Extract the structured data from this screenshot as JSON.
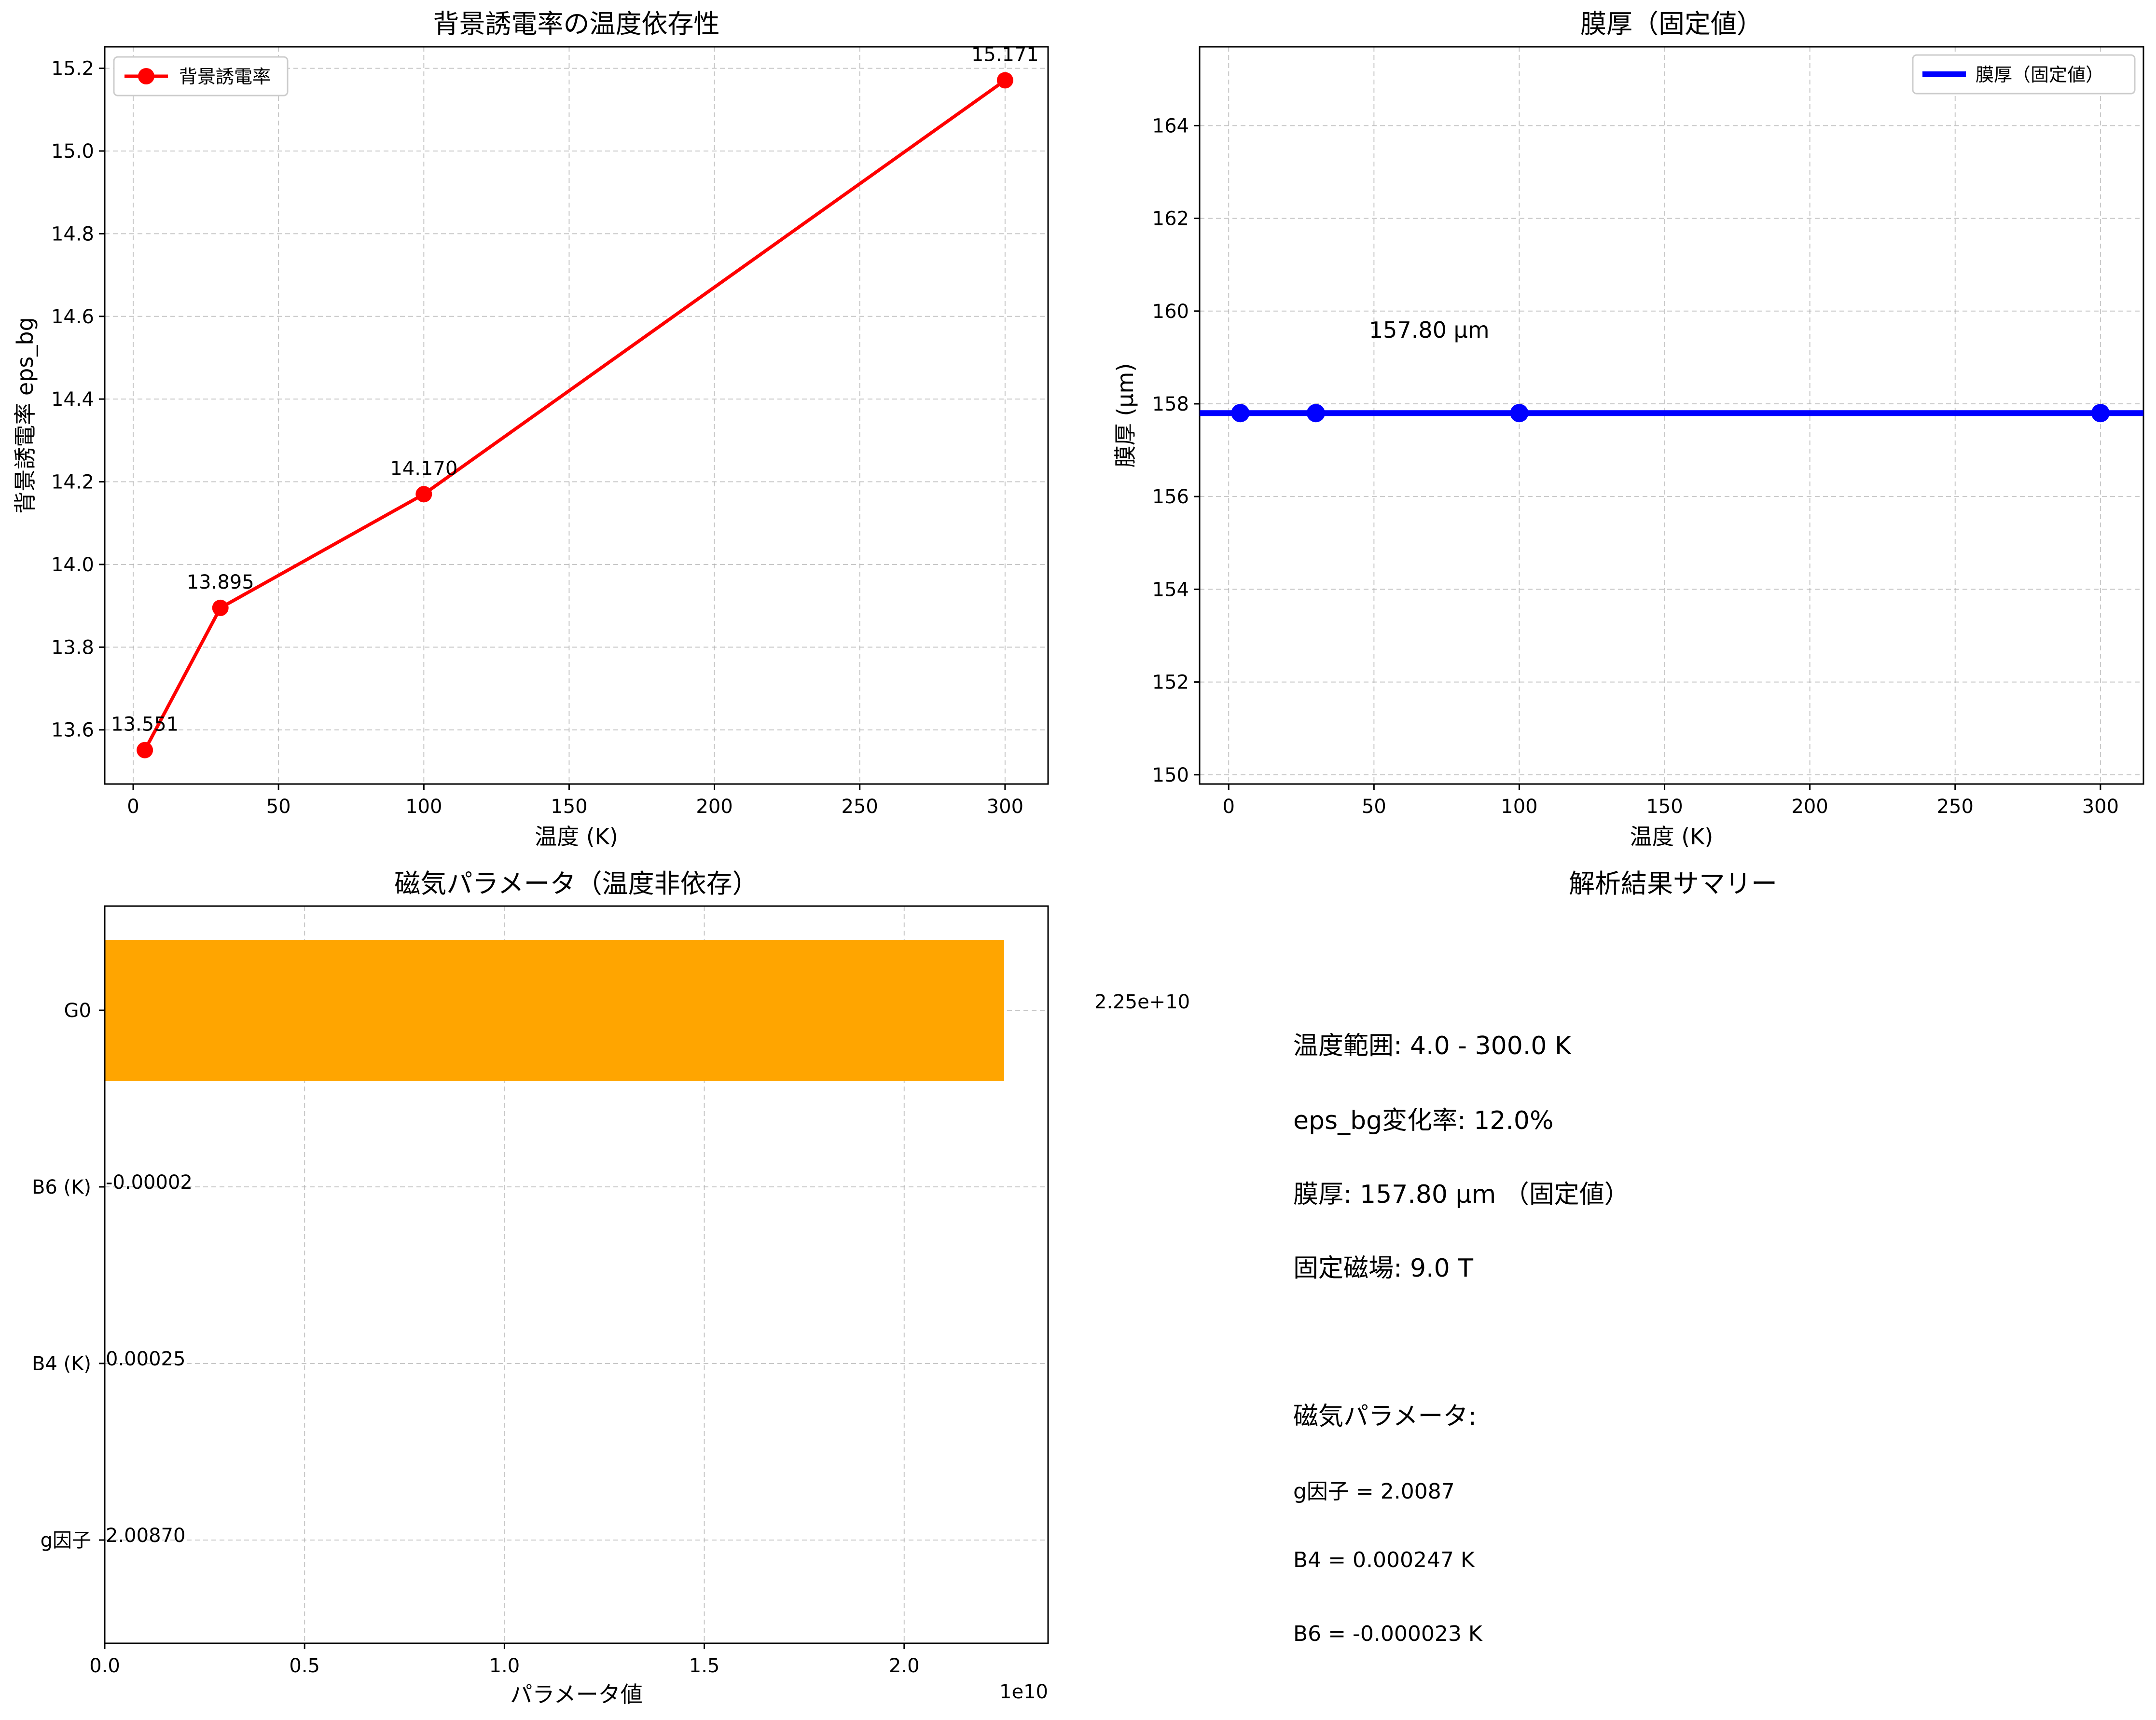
{
  "chart_data": [
    {
      "type": "line",
      "title": "背景誘電率の温度依存性",
      "xlabel": "温度 (K)",
      "ylabel": "背景誘電率 eps_bg",
      "xlim": [
        -9.8,
        314.8
      ],
      "ylim": [
        13.469,
        15.252
      ],
      "xticks": [
        0,
        50,
        100,
        150,
        200,
        250,
        300
      ],
      "yticks": [
        13.6,
        13.8,
        14.0,
        14.2,
        14.4,
        14.6,
        14.8,
        15.0,
        15.2
      ],
      "ytick_labels": [
        "13.6",
        "13.8",
        "14.0",
        "14.2",
        "14.4",
        "14.6",
        "14.8",
        "15.0",
        "15.2"
      ],
      "grid": true,
      "legend_position": "upper-left",
      "series": [
        {
          "name": "背景誘電率",
          "color": "#ff0000",
          "x": [
            4,
            30,
            100,
            300
          ],
          "y": [
            13.551,
            13.895,
            14.17,
            15.171
          ],
          "labels": [
            "13.551",
            "13.895",
            "14.170",
            "15.171"
          ]
        }
      ]
    },
    {
      "type": "line",
      "title": "膜厚（固定値）",
      "xlabel": "温度 (K)",
      "ylabel": "膜厚 (μm)",
      "xlim": [
        -10,
        314.8
      ],
      "ylim": [
        149.8,
        165.7
      ],
      "xticks": [
        0,
        50,
        100,
        150,
        200,
        250,
        300
      ],
      "yticks": [
        150,
        152,
        154,
        156,
        158,
        160,
        162,
        164
      ],
      "grid": true,
      "legend_position": "upper-right",
      "annotation": "157.80 μm",
      "hline": {
        "name": "膜厚（固定値）",
        "y": 157.8,
        "color": "#0000ff"
      },
      "series": [
        {
          "color": "#0000ff",
          "x": [
            4,
            30,
            100,
            300
          ],
          "y": [
            157.8,
            157.8,
            157.8,
            157.8
          ]
        }
      ]
    },
    {
      "type": "bar",
      "orientation": "horizontal",
      "title": "磁気パラメータ（温度非依存）",
      "xlabel": "パラメータ値",
      "x_offset_label": "1e10",
      "xlim": [
        0,
        23600000000
      ],
      "xticks": [
        0,
        5000000000,
        10000000000,
        15000000000,
        20000000000
      ],
      "xtick_labels": [
        "0.0",
        "0.5",
        "1.0",
        "1.5",
        "2.0"
      ],
      "grid": true,
      "color": "#ffa500",
      "categories": [
        "G0",
        "B6 (K)",
        "B4 (K)",
        "g因子"
      ],
      "values": [
        22500000000,
        -2e-05,
        0.00025,
        2.0087
      ],
      "value_labels": [
        "2.25e+10",
        "-0.00002",
        "0.00025",
        "2.00870"
      ]
    }
  ],
  "summary": {
    "title": "解析結果サマリー",
    "temp_range": "温度範囲: 4.0 - 300.0 K",
    "eps_change": "eps_bg変化率: 12.0%",
    "thickness": "膜厚: 157.80 μm （固定値）",
    "field": "固定磁場: 9.0 T",
    "mag_header": "磁気パラメータ:",
    "g_factor": "g因子 = 2.0087",
    "b4": "B4 = 0.000247 K",
    "b6": "B6 = -0.000023 K"
  }
}
